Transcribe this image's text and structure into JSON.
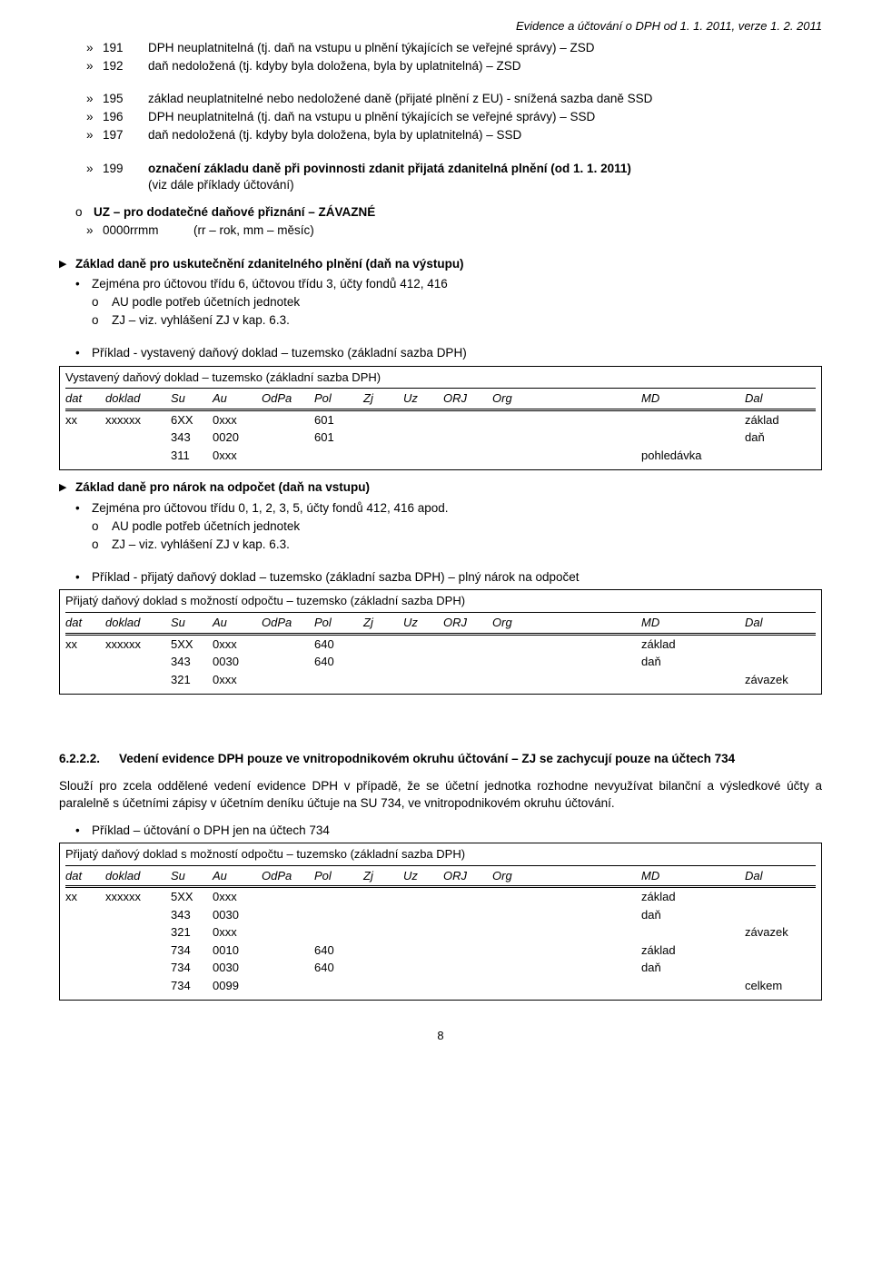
{
  "header": "Evidence a účtování o DPH od 1. 1. 2011, verze 1. 2. 2011",
  "list1": [
    {
      "code": "191",
      "text": "DPH neuplatnitelná (tj. daň na vstupu u plnění týkajících se veřejné správy) – ZSD"
    },
    {
      "code": "192",
      "text": "daň nedoložená (tj. kdyby byla doložena, byla by uplatnitelná) – ZSD"
    }
  ],
  "list2": [
    {
      "code": "195",
      "text": "základ neuplatnitelné nebo nedoložené daně (přijaté plnění z EU) - snížená sazba daně SSD"
    },
    {
      "code": "196",
      "text": "DPH neuplatnitelná (tj. daň na vstupu u plnění týkajících se veřejné správy) – SSD"
    },
    {
      "code": "197",
      "text": "daň nedoložená (tj. kdyby byla doložena, byla by uplatnitelná) – SSD"
    }
  ],
  "list3": [
    {
      "code": "199",
      "bold_text": "označení základu daně při povinnosti zdanit přijatá zdanitelná plnění (od 1. 1. 2011)",
      "plain": "(viz dále příklady účtování)"
    }
  ],
  "uz_section": {
    "title": "UZ – pro dodatečné daňové přiznání – ZÁVAZNÉ",
    "sub_label": "0000rrmm",
    "sub_text": "(rr – rok, mm – měsíc)"
  },
  "section_a": {
    "title": "Základ daně pro uskutečnění zdanitelného plnění (daň na výstupu)",
    "bullet": "Zejména pro účtovou třídu 6, účtovou třídu 3, účty fondů 412, 416",
    "sub1": "AU podle potřeb účetních jednotek",
    "sub2": "ZJ – viz. vyhlášení ZJ v kap. 6.3.",
    "example": "Příklad - vystavený daňový doklad – tuzemsko (základní sazba DPH)"
  },
  "table1": {
    "caption": "Vystavený daňový doklad – tuzemsko (základní sazba DPH)",
    "head": [
      "dat",
      "doklad",
      "Su",
      "Au",
      "OdPa",
      "Pol",
      "Zj",
      "Uz",
      "ORJ",
      "Org",
      "MD",
      "Dal"
    ],
    "rows": [
      {
        "dat": "xx",
        "doklad": "xxxxxx",
        "su": "6XX",
        "au": "0xxx",
        "odpa": "",
        "pol": "601",
        "zj": "",
        "uz": "",
        "orj": "",
        "org": "",
        "md": "",
        "dal": "základ"
      },
      {
        "dat": "",
        "doklad": "",
        "su": "343",
        "au": "0020",
        "odpa": "",
        "pol": "601",
        "zj": "",
        "uz": "",
        "orj": "",
        "org": "",
        "md": "",
        "dal": "daň"
      },
      {
        "dat": "",
        "doklad": "",
        "su": "311",
        "au": "0xxx",
        "odpa": "",
        "pol": "",
        "zj": "",
        "uz": "",
        "orj": "",
        "org": "",
        "md": "pohledávka",
        "dal": ""
      }
    ]
  },
  "section_b": {
    "title": "Základ daně pro nárok na odpočet (daň na vstupu)",
    "bullet": "Zejména pro účtovou třídu 0, 1, 2, 3, 5, účty fondů 412, 416 apod.",
    "sub1": "AU podle potřeb účetních jednotek",
    "sub2": "ZJ – viz. vyhlášení ZJ v kap. 6.3.",
    "example": "Příklad - přijatý daňový doklad – tuzemsko (základní sazba DPH) – plný nárok na odpočet"
  },
  "table2": {
    "caption": "Přijatý daňový doklad s možností odpočtu – tuzemsko (základní sazba DPH)",
    "head": [
      "dat",
      "doklad",
      "Su",
      "Au",
      "OdPa",
      "Pol",
      "Zj",
      "Uz",
      "ORJ",
      "Org",
      "MD",
      "Dal"
    ],
    "rows": [
      {
        "dat": "xx",
        "doklad": "xxxxxx",
        "su": "5XX",
        "au": "0xxx",
        "odpa": "",
        "pol": "640",
        "zj": "",
        "uz": "",
        "orj": "",
        "org": "",
        "md": "základ",
        "dal": ""
      },
      {
        "dat": "",
        "doklad": "",
        "su": "343",
        "au": "0030",
        "odpa": "",
        "pol": "640",
        "zj": "",
        "uz": "",
        "orj": "",
        "org": "",
        "md": "daň",
        "dal": ""
      },
      {
        "dat": "",
        "doklad": "",
        "su": "321",
        "au": "0xxx",
        "odpa": "",
        "pol": "",
        "zj": "",
        "uz": "",
        "orj": "",
        "org": "",
        "md": "",
        "dal": "závazek"
      }
    ]
  },
  "h6222_num": "6.2.2.2.",
  "h6222_text": "Vedení evidence DPH pouze ve vnitropodnikovém okruhu účtování – ZJ se zachycují pouze na účtech 734",
  "para": "Slouží pro zcela oddělené vedení evidence DPH v případě, že se účetní jednotka rozhodne nevyužívat bilanční a výsledkové účty a paralelně s účetními zápisy v účetním deníku účtuje na SU 734, ve vnitropodnikovém okruhu účtování.",
  "example3": "Příklad – účtování o DPH jen na účtech 734",
  "table3": {
    "caption": "Přijatý daňový doklad s možností odpočtu – tuzemsko (základní sazba DPH)",
    "head": [
      "dat",
      "doklad",
      "Su",
      "Au",
      "OdPa",
      "Pol",
      "Zj",
      "Uz",
      "ORJ",
      "Org",
      "MD",
      "Dal"
    ],
    "rows": [
      {
        "dat": "xx",
        "doklad": "xxxxxx",
        "su": "5XX",
        "au": "0xxx",
        "odpa": "",
        "pol": "",
        "zj": "",
        "uz": "",
        "orj": "",
        "org": "",
        "md": "základ",
        "dal": ""
      },
      {
        "dat": "",
        "doklad": "",
        "su": "343",
        "au": "0030",
        "odpa": "",
        "pol": "",
        "zj": "",
        "uz": "",
        "orj": "",
        "org": "",
        "md": "daň",
        "dal": ""
      },
      {
        "dat": "",
        "doklad": "",
        "su": "321",
        "au": "0xxx",
        "odpa": "",
        "pol": "",
        "zj": "",
        "uz": "",
        "orj": "",
        "org": "",
        "md": "",
        "dal": "závazek"
      },
      {
        "dat": "",
        "doklad": "",
        "su": "734",
        "au": "0010",
        "odpa": "",
        "pol": "640",
        "zj": "",
        "uz": "",
        "orj": "",
        "org": "",
        "md": "základ",
        "dal": ""
      },
      {
        "dat": "",
        "doklad": "",
        "su": "734",
        "au": "0030",
        "odpa": "",
        "pol": "640",
        "zj": "",
        "uz": "",
        "orj": "",
        "org": "",
        "md": "daň",
        "dal": ""
      },
      {
        "dat": "",
        "doklad": "",
        "su": "734",
        "au": "0099",
        "odpa": "",
        "pol": "",
        "zj": "",
        "uz": "",
        "orj": "",
        "org": "",
        "md": "",
        "dal": "celkem"
      }
    ]
  },
  "pagenum": "8"
}
